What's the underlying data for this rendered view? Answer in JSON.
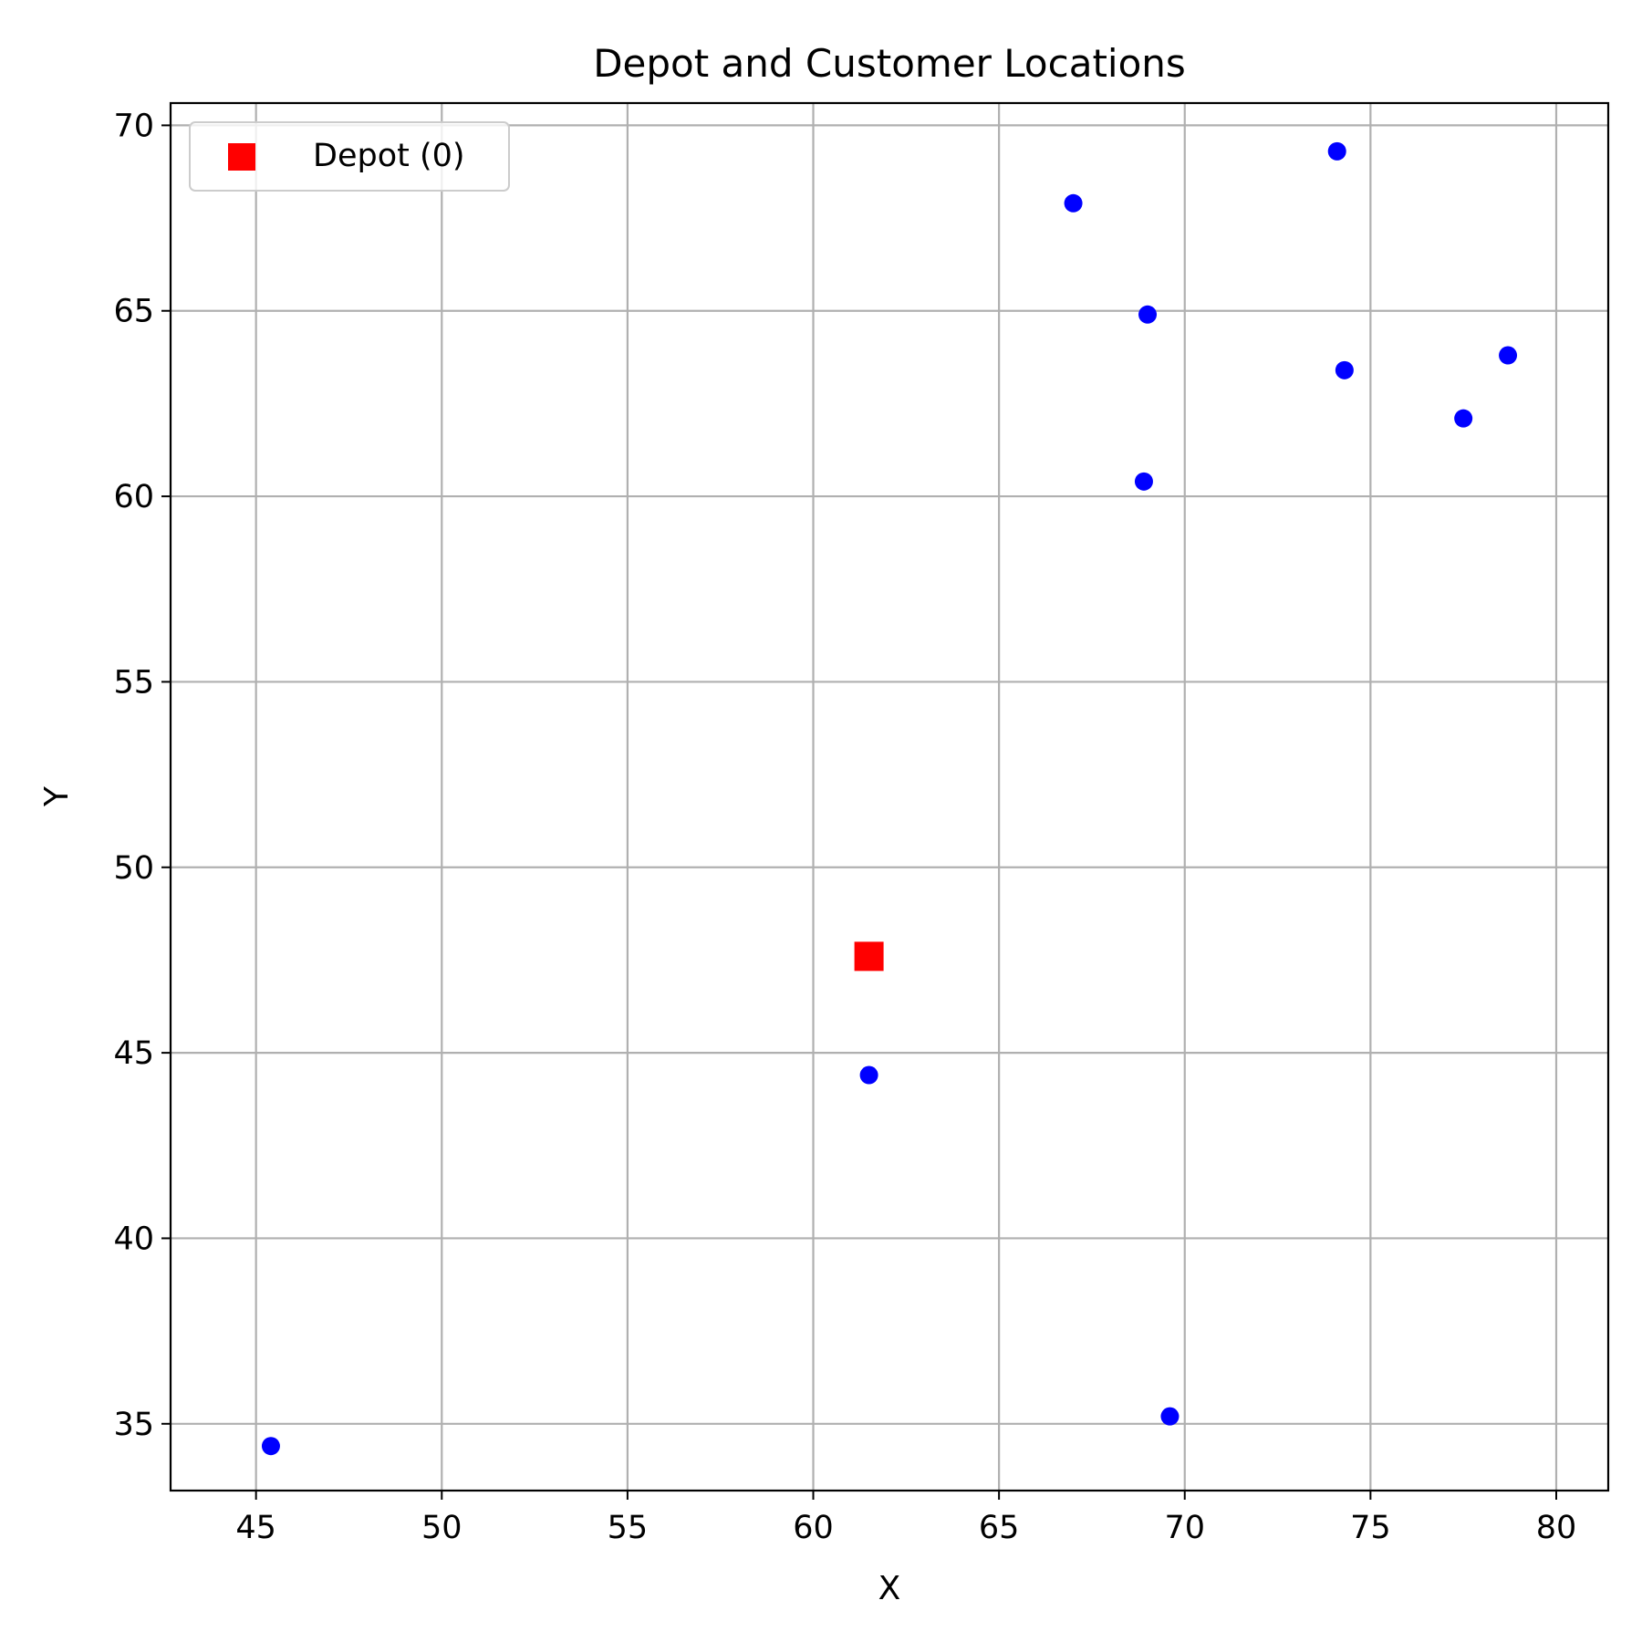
{
  "chart_data": {
    "type": "scatter",
    "title": "Depot and Customer Locations",
    "xlabel": "X",
    "ylabel": "Y",
    "xlim": [
      42.7,
      81.4
    ],
    "ylim": [
      33.2,
      70.6
    ],
    "xticks": [
      45,
      50,
      55,
      60,
      65,
      70,
      75,
      80
    ],
    "yticks": [
      35,
      40,
      45,
      50,
      55,
      60,
      65,
      70
    ],
    "grid": true,
    "legend_position": "top-left",
    "series": [
      {
        "name": "Depot (0)",
        "marker": "square",
        "color": "#ff0000",
        "points": [
          {
            "x": 61.5,
            "y": 47.6
          }
        ]
      },
      {
        "marker": "circle",
        "color": "#0000ff",
        "points": [
          {
            "x": 74.1,
            "y": 69.3
          },
          {
            "x": 67.0,
            "y": 67.9
          },
          {
            "x": 69.0,
            "y": 64.9
          },
          {
            "x": 74.3,
            "y": 63.4
          },
          {
            "x": 78.7,
            "y": 63.8
          },
          {
            "x": 77.5,
            "y": 62.1
          },
          {
            "x": 68.9,
            "y": 60.4
          },
          {
            "x": 61.5,
            "y": 44.4
          },
          {
            "x": 69.6,
            "y": 35.2
          },
          {
            "x": 45.4,
            "y": 34.4
          }
        ]
      }
    ]
  }
}
